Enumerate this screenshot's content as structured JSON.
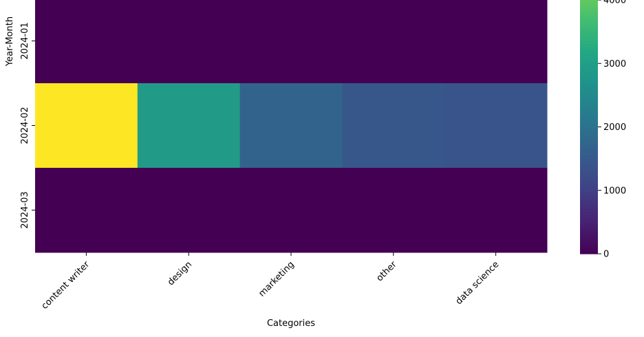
{
  "chart_data": {
    "type": "heatmap",
    "title": "",
    "xlabel": "Categories",
    "ylabel": "Year-Month",
    "x_categories": [
      "content writer",
      "design",
      "marketing",
      "other",
      "data science"
    ],
    "y_categories": [
      "2024-01",
      "2024-02",
      "2024-03"
    ],
    "values": [
      [
        0,
        0,
        0,
        0,
        0
      ],
      [
        5300,
        2900,
        1700,
        1450,
        1400
      ],
      [
        0,
        0,
        0,
        0,
        0
      ]
    ],
    "colormap": "viridis",
    "vmin": 0,
    "vmax": 5300,
    "colorbar_ticks": [
      0,
      1000,
      2000,
      3000,
      4000
    ],
    "colorbar_tick_labels": [
      "0",
      "1000",
      "2000",
      "3000",
      "4000"
    ],
    "colors": {
      "text": "#000000",
      "background": "#ffffff"
    }
  }
}
